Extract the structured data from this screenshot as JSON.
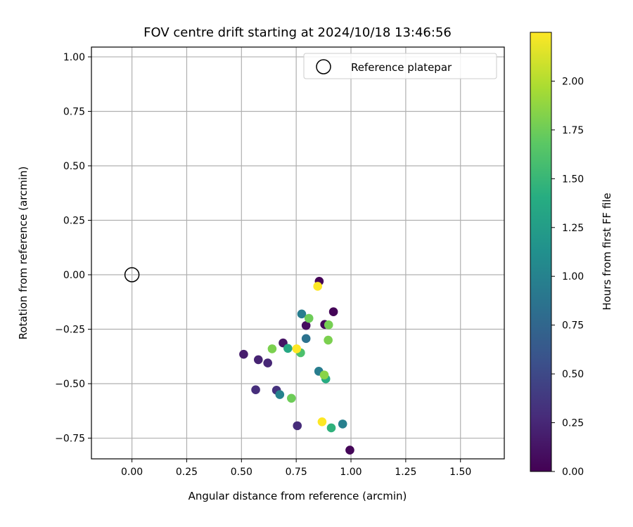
{
  "chart_data": {
    "type": "scatter",
    "title": "FOV centre drift starting at 2024/10/18 13:46:56",
    "xlabel": "Angular distance from reference (arcmin)",
    "ylabel": "Rotation from reference (arcmin)",
    "xlim": [
      -0.185,
      1.7
    ],
    "ylim": [
      -0.845,
      1.045
    ],
    "x_ticks": [
      "0.00",
      "0.25",
      "0.50",
      "0.75",
      "1.00",
      "1.25",
      "1.50"
    ],
    "y_ticks": [
      "−0.75",
      "−0.50",
      "−0.25",
      "0.00",
      "0.25",
      "0.50",
      "0.75",
      "1.00"
    ],
    "grid": true,
    "legend": {
      "placement": "top-right",
      "entries": [
        {
          "label": "Reference platepar",
          "marker": "open-circle",
          "color": "#000000"
        }
      ]
    },
    "reference_point": {
      "x": 0.0,
      "y": 0.0
    },
    "colorbar": {
      "label": "Hours from first FF file",
      "colormap": "viridis",
      "range": [
        0.0,
        2.25
      ],
      "ticks": [
        "0.00",
        "0.25",
        "0.50",
        "0.75",
        "1.00",
        "1.25",
        "1.50",
        "1.75",
        "2.00"
      ]
    },
    "points": [
      {
        "x": 0.855,
        "y": -0.03,
        "hours": 0.02
      },
      {
        "x": 0.92,
        "y": -0.17,
        "hours": 0.02
      },
      {
        "x": 0.88,
        "y": -0.228,
        "hours": 0.05
      },
      {
        "x": 0.795,
        "y": -0.233,
        "hours": 0.08
      },
      {
        "x": 0.69,
        "y": -0.313,
        "hours": 0.12
      },
      {
        "x": 0.51,
        "y": -0.365,
        "hours": 0.18
      },
      {
        "x": 0.577,
        "y": -0.39,
        "hours": 0.22
      },
      {
        "x": 0.62,
        "y": -0.405,
        "hours": 0.25
      },
      {
        "x": 0.565,
        "y": -0.528,
        "hours": 0.3
      },
      {
        "x": 0.66,
        "y": -0.53,
        "hours": 0.33
      },
      {
        "x": 0.755,
        "y": -0.693,
        "hours": 0.28
      },
      {
        "x": 0.995,
        "y": -0.805,
        "hours": 0.03
      },
      {
        "x": 0.795,
        "y": -0.293,
        "hours": 0.85
      },
      {
        "x": 0.775,
        "y": -0.18,
        "hours": 0.95
      },
      {
        "x": 0.853,
        "y": -0.443,
        "hours": 0.95
      },
      {
        "x": 0.675,
        "y": -0.55,
        "hours": 1.0
      },
      {
        "x": 0.962,
        "y": -0.685,
        "hours": 0.98
      },
      {
        "x": 0.712,
        "y": -0.338,
        "hours": 1.35
      },
      {
        "x": 0.885,
        "y": -0.478,
        "hours": 1.4
      },
      {
        "x": 0.91,
        "y": -0.703,
        "hours": 1.45
      },
      {
        "x": 0.77,
        "y": -0.358,
        "hours": 1.6
      },
      {
        "x": 0.808,
        "y": -0.2,
        "hours": 1.75
      },
      {
        "x": 0.898,
        "y": -0.23,
        "hours": 1.78
      },
      {
        "x": 0.896,
        "y": -0.3,
        "hours": 1.8
      },
      {
        "x": 0.64,
        "y": -0.34,
        "hours": 1.8
      },
      {
        "x": 0.878,
        "y": -0.46,
        "hours": 1.85
      },
      {
        "x": 0.728,
        "y": -0.567,
        "hours": 1.75
      },
      {
        "x": 0.848,
        "y": -0.053,
        "hours": 2.25
      },
      {
        "x": 0.752,
        "y": -0.34,
        "hours": 2.25
      },
      {
        "x": 0.868,
        "y": -0.675,
        "hours": 2.25
      }
    ]
  }
}
